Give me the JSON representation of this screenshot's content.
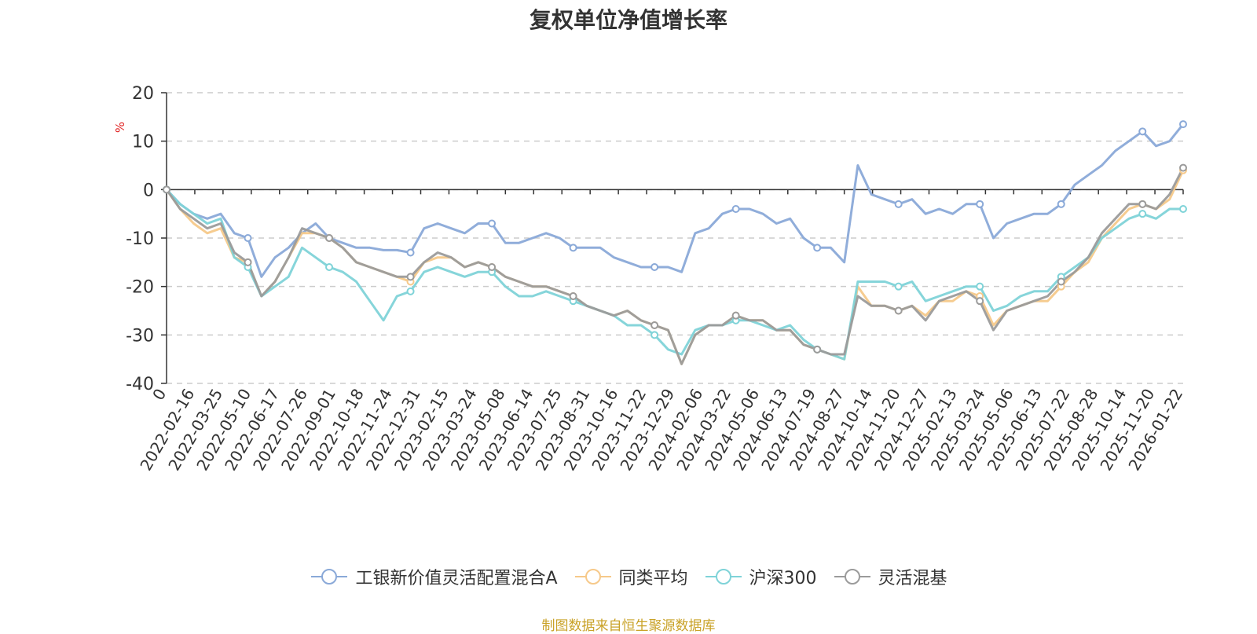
{
  "chart_data": {
    "type": "line",
    "title": "复权单位净值增长率",
    "ylabel": "%",
    "xlabel": "",
    "ylim": [
      -40,
      20
    ],
    "yticks": [
      20,
      10,
      0,
      -10,
      -20,
      -30,
      -40
    ],
    "grid": true,
    "legend_position": "bottom",
    "x_tick_labels": [
      "0",
      "2022-02-16",
      "2022-03-25",
      "2022-05-10",
      "2022-06-17",
      "2022-07-26",
      "2022-09-01",
      "2022-10-18",
      "2022-11-24",
      "2022-12-31",
      "2023-02-15",
      "2023-03-24",
      "2023-05-08",
      "2023-06-14",
      "2023-07-25",
      "2023-08-31",
      "2023-10-16",
      "2023-11-22",
      "2023-12-29",
      "2024-02-06",
      "2024-03-22",
      "2024-05-06",
      "2024-06-13",
      "2024-07-19",
      "2024-08-27",
      "2024-10-14",
      "2024-11-20",
      "2024-12-27",
      "2025-02-13",
      "2025-03-24",
      "2025-05-06",
      "2025-06-13",
      "2025-07-22",
      "2025-08-28",
      "2025-10-14",
      "2025-11-20",
      "2026-01-22"
    ],
    "categories": [
      "0",
      "2022-01-20",
      "2022-02-16",
      "2022-03-07",
      "2022-03-25",
      "2022-04-19",
      "2022-05-10",
      "2022-05-27",
      "2022-06-17",
      "2022-07-06",
      "2022-07-26",
      "2022-08-12",
      "2022-09-01",
      "2022-09-22",
      "2022-10-18",
      "2022-11-04",
      "2022-11-24",
      "2022-12-13",
      "2022-12-31",
      "2023-01-20",
      "2023-02-15",
      "2023-03-06",
      "2023-03-24",
      "2023-04-17",
      "2023-05-08",
      "2023-05-26",
      "2023-06-14",
      "2023-07-04",
      "2023-07-25",
      "2023-08-11",
      "2023-08-31",
      "2023-09-20",
      "2023-10-16",
      "2023-11-02",
      "2023-11-22",
      "2023-12-11",
      "2023-12-29",
      "2024-01-18",
      "2024-02-06",
      "2024-03-04",
      "2024-03-22",
      "2024-04-15",
      "2024-05-06",
      "2024-05-24",
      "2024-06-13",
      "2024-07-02",
      "2024-07-19",
      "2024-08-07",
      "2024-08-27",
      "2024-09-20",
      "2024-10-08",
      "2024-10-14",
      "2024-11-01",
      "2024-11-20",
      "2024-12-09",
      "2024-12-27",
      "2025-01-16",
      "2025-02-13",
      "2025-03-05",
      "2025-03-24",
      "2025-04-07",
      "2025-04-14",
      "2025-05-06",
      "2025-05-26",
      "2025-06-13",
      "2025-07-02",
      "2025-07-22",
      "2025-08-08",
      "2025-08-28",
      "2025-09-18",
      "2025-10-14",
      "2025-10-31",
      "2025-11-20",
      "2025-12-10",
      "2025-12-31",
      "2026-01-22"
    ],
    "series": [
      {
        "name": "工银新价值灵活配置混合A",
        "color": "#8aa9d8",
        "values": [
          0,
          -3,
          -5,
          -6,
          -5,
          -9,
          -10,
          -18,
          -14,
          -12,
          -9,
          -7,
          -10,
          -11,
          -12,
          -12,
          -12.5,
          -12.5,
          -13,
          -8,
          -7,
          -8,
          -9,
          -7,
          -7,
          -11,
          -11,
          -10,
          -9,
          -10,
          -12,
          -12,
          -12,
          -14,
          -15,
          -16,
          -16,
          -16,
          -17,
          -9,
          -8,
          -5,
          -4,
          -4,
          -5,
          -7,
          -6,
          -10,
          -12,
          -12,
          -15,
          5,
          -1,
          -2,
          -3,
          -2,
          -5,
          -4,
          -5,
          -3,
          -3,
          -10,
          -7,
          -6,
          -5,
          -5,
          -3,
          1,
          3,
          5,
          8,
          10,
          12,
          9,
          10,
          13.5
        ]
      },
      {
        "name": "同类平均",
        "color": "#f6c98a",
        "values": [
          0,
          -4,
          -7,
          -9,
          -8,
          -14,
          -15,
          -22,
          -19,
          -14,
          -9,
          -9,
          -10,
          -12,
          -15,
          -16,
          -17,
          -18,
          -19,
          -15,
          -14,
          -14,
          -16,
          -15,
          -16,
          -18,
          -19,
          -20,
          -20,
          -21,
          -22,
          -24,
          -25,
          -26,
          -25,
          -27,
          -28,
          -29,
          -36,
          -30,
          -28,
          -28,
          -26,
          -27,
          -27,
          -29,
          -29,
          -32,
          -33,
          -34,
          -35,
          -20,
          -24,
          -24,
          -25,
          -24,
          -26,
          -23,
          -23,
          -21,
          -22,
          -28,
          -25,
          -24,
          -23,
          -23,
          -20,
          -17,
          -15,
          -10,
          -7,
          -4,
          -3,
          -4,
          -2,
          4
        ]
      },
      {
        "name": "沪深300",
        "color": "#7fd3d8",
        "values": [
          0,
          -3,
          -5,
          -7,
          -6,
          -14,
          -16,
          -22,
          -20,
          -18,
          -12,
          -14,
          -16,
          -17,
          -19,
          -23,
          -27,
          -22,
          -21,
          -17,
          -16,
          -17,
          -18,
          -17,
          -17,
          -20,
          -22,
          -22,
          -21,
          -22,
          -23,
          -24,
          -25,
          -26,
          -28,
          -28,
          -30,
          -33,
          -34,
          -29,
          -28,
          -28,
          -27,
          -27,
          -28,
          -29,
          -28,
          -31,
          -33,
          -34,
          -35,
          -19,
          -19,
          -19,
          -20,
          -19,
          -23,
          -22,
          -21,
          -20,
          -20,
          -25,
          -24,
          -22,
          -21,
          -21,
          -18,
          -16,
          -14,
          -10,
          -8,
          -6,
          -5,
          -6,
          -4,
          -4
        ]
      },
      {
        "name": "灵活混基",
        "color": "#9b9b9b",
        "values": [
          0,
          -4,
          -6,
          -8,
          -7,
          -13,
          -15,
          -22,
          -19,
          -14,
          -8,
          -9,
          -10,
          -12,
          -15,
          -16,
          -17,
          -18,
          -18,
          -15,
          -13,
          -14,
          -16,
          -15,
          -16,
          -18,
          -19,
          -20,
          -20,
          -21,
          -22,
          -24,
          -25,
          -26,
          -25,
          -27,
          -28,
          -29,
          -36,
          -30,
          -28,
          -28,
          -26,
          -27,
          -27,
          -29,
          -29,
          -32,
          -33,
          -34,
          -34,
          -22,
          -24,
          -24,
          -25,
          -24,
          -27,
          -23,
          -22,
          -21,
          -23,
          -29,
          -25,
          -24,
          -23,
          -22,
          -19,
          -17,
          -14,
          -9,
          -6,
          -3,
          -3,
          -4,
          -1,
          4.5
        ]
      }
    ]
  },
  "legend": {
    "items": [
      "工银新价值灵活配置混合A",
      "同类平均",
      "沪深300",
      "灵活混基"
    ]
  },
  "source_text": "制图数据来自恒生聚源数据库"
}
